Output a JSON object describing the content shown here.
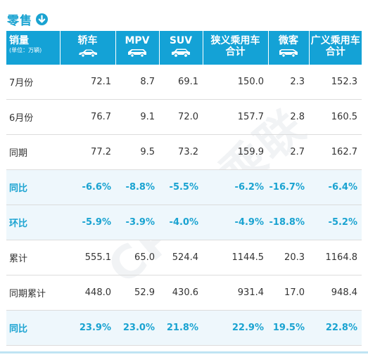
{
  "title": "零售",
  "header": {
    "first": "销量",
    "unit": "(单位：万辆)",
    "columns": [
      {
        "label": "轿车",
        "icon": "sedan-icon"
      },
      {
        "label": "MPV",
        "icon": "mpv-icon"
      },
      {
        "label": "SUV",
        "icon": "suv-icon"
      },
      {
        "label1": "狭义乘用车",
        "label2": "合计"
      },
      {
        "label": "微客",
        "icon": "minivan-icon"
      },
      {
        "label1": "广义乘用车",
        "label2": "合计"
      }
    ]
  },
  "rows": [
    {
      "label": "7月份",
      "values": [
        "72.1",
        "8.7",
        "69.1",
        "150.0",
        "2.3",
        "152.3"
      ],
      "highlight": false
    },
    {
      "label": "6月份",
      "values": [
        "76.7",
        "9.1",
        "72.0",
        "157.7",
        "2.8",
        "160.5"
      ],
      "highlight": false
    },
    {
      "label": "同期",
      "values": [
        "77.2",
        "9.5",
        "73.2",
        "159.9",
        "2.7",
        "162.7"
      ],
      "highlight": false
    },
    {
      "label": "同比",
      "values": [
        "-6.6%",
        "-8.8%",
        "-5.5%",
        "-6.2%",
        "-16.7%",
        "-6.4%"
      ],
      "highlight": true
    },
    {
      "label": "环比",
      "values": [
        "-5.9%",
        "-3.9%",
        "-4.0%",
        "-4.9%",
        "-18.8%",
        "-5.2%"
      ],
      "highlight": true
    },
    {
      "label": "累计",
      "values": [
        "555.1",
        "65.0",
        "524.4",
        "1144.5",
        "20.3",
        "1164.8"
      ],
      "highlight": false
    },
    {
      "label": "同期累计",
      "values": [
        "448.0",
        "52.9",
        "430.6",
        "931.4",
        "17.0",
        "948.4"
      ],
      "highlight": false
    },
    {
      "label": "同比",
      "values": [
        "23.9%",
        "23.0%",
        "21.8%",
        "22.9%",
        "19.5%",
        "22.8%"
      ],
      "highlight": true
    }
  ],
  "watermark": "CPCA乘联",
  "colors": {
    "accent": "#14a2d6",
    "highlight_bg": "#eef7fc",
    "highlight_text": "#1aa3d1"
  }
}
